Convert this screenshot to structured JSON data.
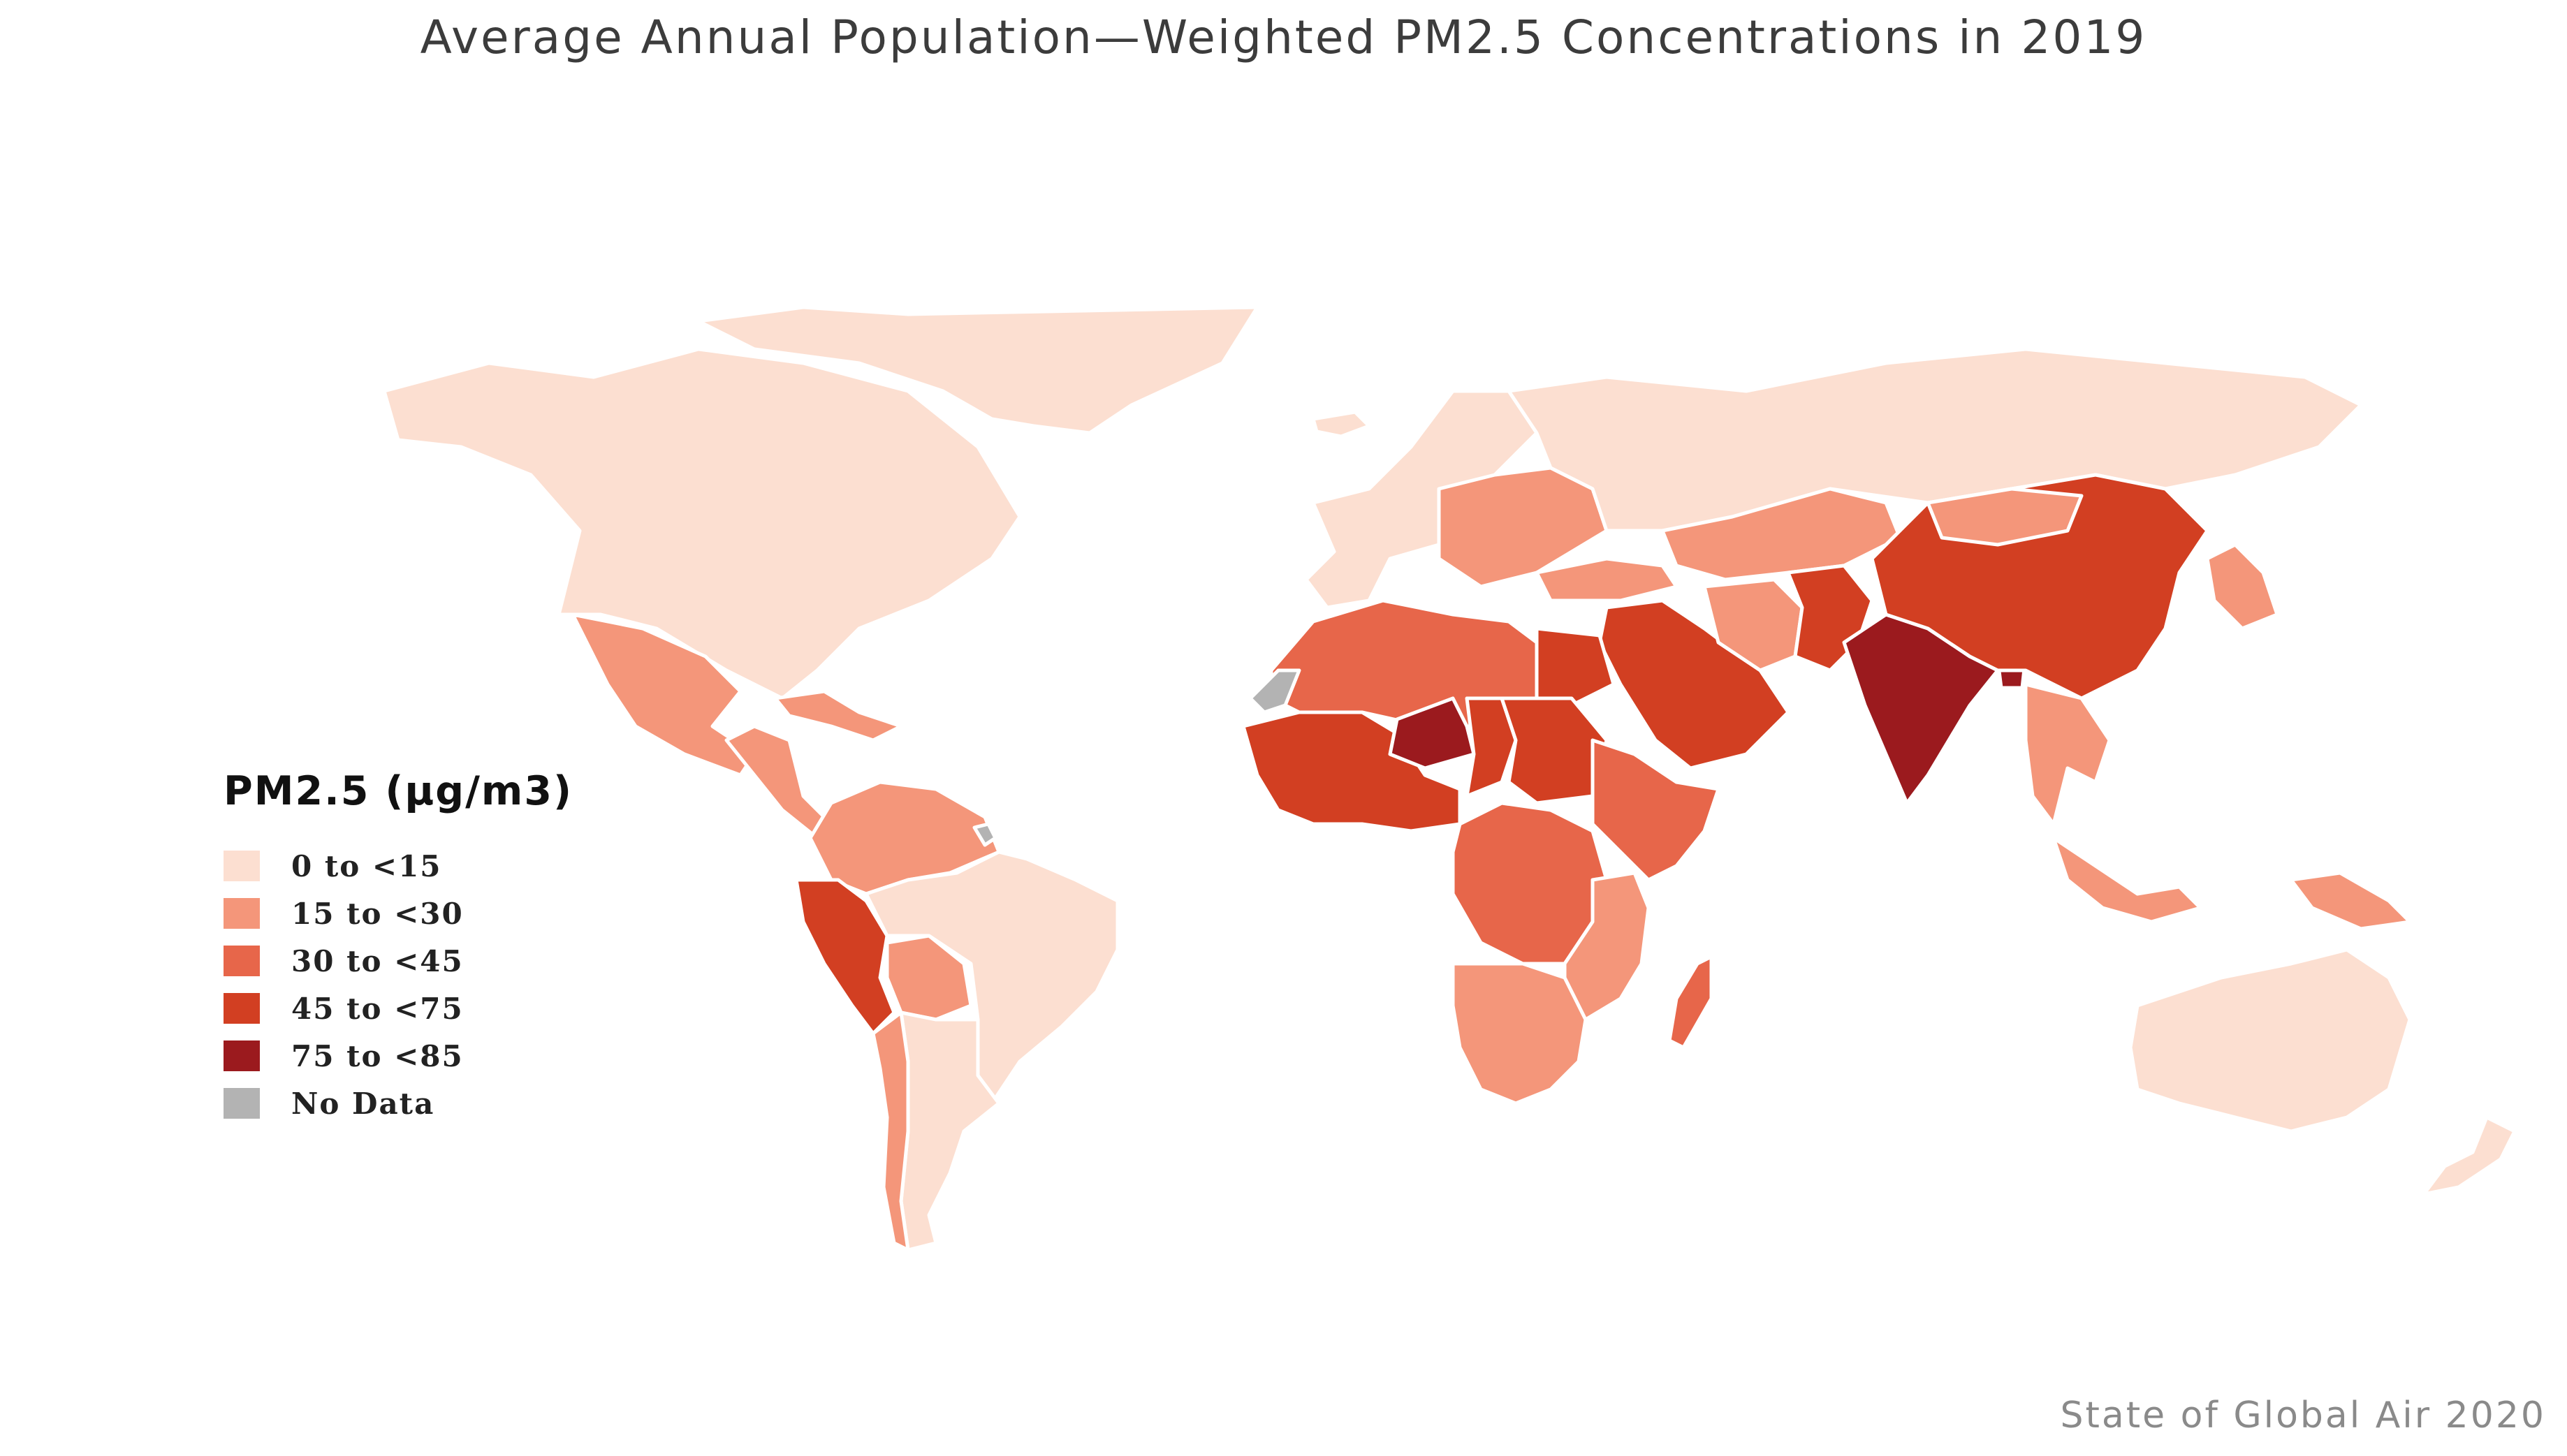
{
  "title": "Average Annual Population—Weighted PM2.5 Concentrations in 2019",
  "credit": "State of Global Air 2020",
  "legend": {
    "title": "PM2.5 (µg/m3)",
    "items": [
      {
        "label": "0 to <15",
        "color": "#fcdfd1"
      },
      {
        "label": "15 to <30",
        "color": "#f4967a"
      },
      {
        "label": "30 to <45",
        "color": "#e7664a"
      },
      {
        "label": "45 to <75",
        "color": "#d23f22"
      },
      {
        "label": "75 to <85",
        "color": "#9b1a1e"
      },
      {
        "label": "No Data",
        "color": "#b3b3b3"
      }
    ]
  },
  "regions": {
    "north-america": 0,
    "greenland": 0,
    "mexico": 1,
    "central-america": 1,
    "caribbean": 1,
    "colombia-venezuela": 1,
    "peru": 3,
    "bolivia": 1,
    "brazil": 0,
    "southern-cone": 0,
    "chile": 1,
    "iceland": 0,
    "europe-west": 0,
    "europe-east": 1,
    "russia": 0,
    "turkey": 1,
    "central-asia": 1,
    "middle-east": 3,
    "iran": 1,
    "afghanistan-pakistan": 3,
    "india": 4,
    "bangladesh": 4,
    "china": 3,
    "mongolia": 1,
    "japan-korea": 1,
    "southeast-asia": 1,
    "indonesia": 1,
    "papua": 1,
    "australia": 0,
    "new-zealand": 0,
    "north-africa": 2,
    "egypt": 3,
    "western-sahara": 5,
    "west-africa": 3,
    "niger": 4,
    "chad": 3,
    "sudan": 3,
    "horn-of-africa": 2,
    "central-africa": 2,
    "east-africa": 1,
    "southern-africa": 1,
    "madagascar": 2,
    "french-guiana": 5
  }
}
